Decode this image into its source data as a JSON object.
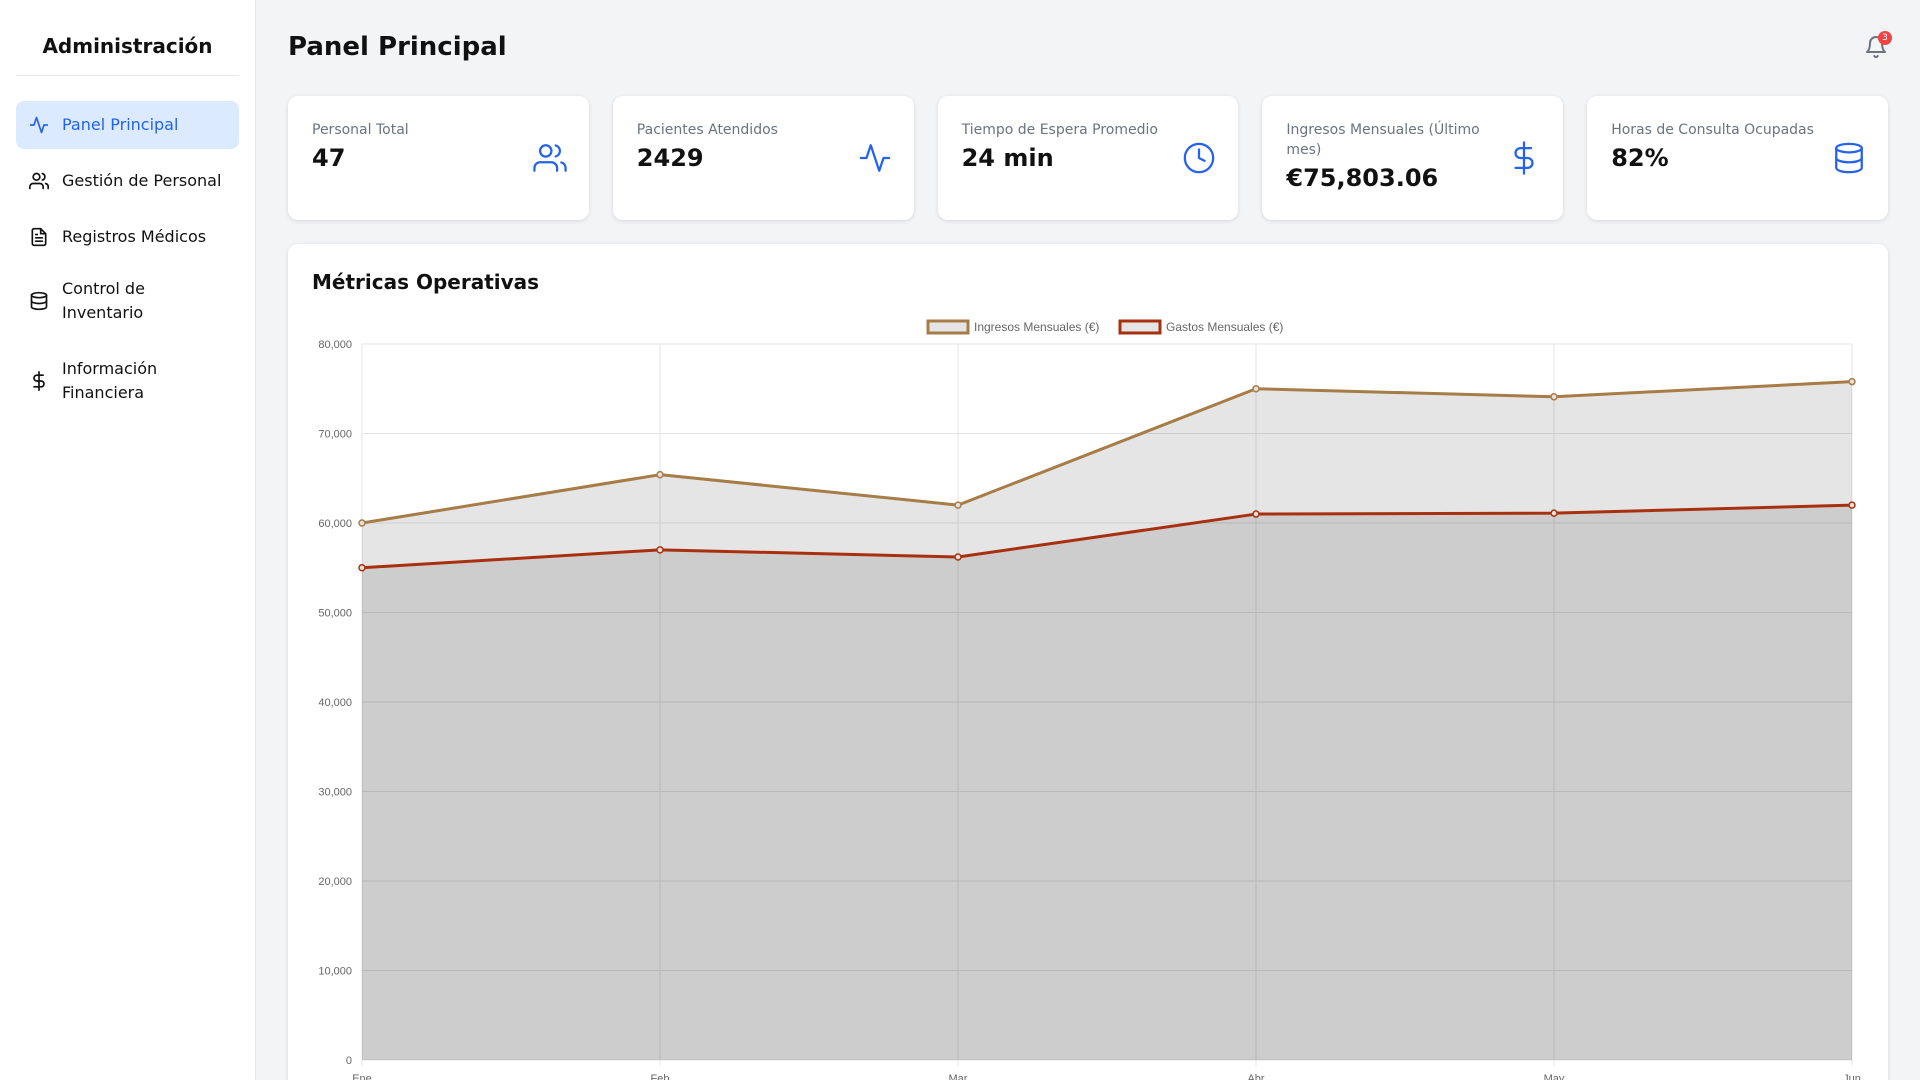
{
  "sidebar": {
    "title": "Administración",
    "items": [
      {
        "label": "Panel Principal",
        "icon": "activity-icon",
        "active": true
      },
      {
        "label": "Gestión de Personal",
        "icon": "users-icon",
        "active": false
      },
      {
        "label": "Registros Médicos",
        "icon": "document-icon",
        "active": false
      },
      {
        "label": "Control de Inventario",
        "icon": "database-icon",
        "active": false
      },
      {
        "label": "Información Financiera",
        "icon": "dollar-icon",
        "active": false
      }
    ]
  },
  "header": {
    "title": "Panel Principal",
    "notifications_count": "3"
  },
  "stats": [
    {
      "label": "Personal Total",
      "value": "47",
      "icon": "users-icon"
    },
    {
      "label": "Pacientes Atendidos",
      "value": "2429",
      "icon": "activity-icon"
    },
    {
      "label": "Tiempo de Espera Promedio",
      "value": "24 min",
      "icon": "clock-icon"
    },
    {
      "label": "Ingresos Mensuales (Último mes)",
      "value": "€75,803.06",
      "icon": "dollar-icon"
    },
    {
      "label": "Horas de Consulta Ocupadas",
      "value": "82%",
      "icon": "database-icon"
    }
  ],
  "chart_section": {
    "title": "Métricas Operativas"
  },
  "colors": {
    "accent": "#2563eb",
    "active_bg": "#dbeafe",
    "income": "#a67c47",
    "expenses": "#a8300f",
    "badge": "#ef4444"
  },
  "chart_data": {
    "type": "area",
    "title": "",
    "xlabel": "",
    "ylabel": "",
    "categories": [
      "Ene",
      "Feb",
      "Mar",
      "Abr",
      "May",
      "Jun"
    ],
    "ylim": [
      0,
      80000
    ],
    "yticks": [
      "0",
      "10,000",
      "20,000",
      "30,000",
      "40,000",
      "50,000",
      "60,000",
      "70,000",
      "80,000"
    ],
    "grid": true,
    "legend": "top-center",
    "series": [
      {
        "name": "Ingresos Mensuales (€)",
        "values": [
          60000,
          65400,
          62000,
          75000,
          74100,
          75800
        ],
        "color": "#a67c47"
      },
      {
        "name": "Gastos Mensuales (€)",
        "values": [
          55000,
          57000,
          56200,
          61000,
          61100,
          62000
        ],
        "color": "#a8300f"
      }
    ]
  }
}
